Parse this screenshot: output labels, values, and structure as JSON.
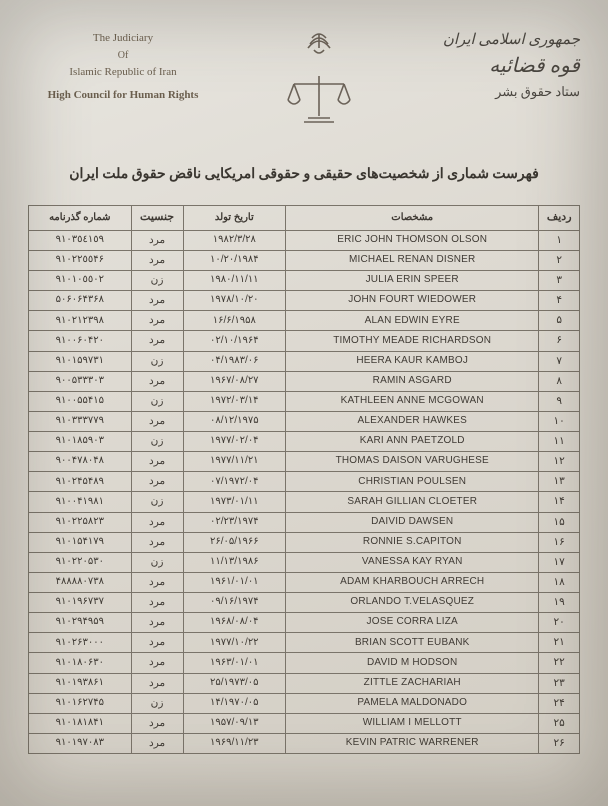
{
  "header": {
    "left": {
      "line1": "The Judiciary",
      "line2": "Of",
      "line3": "Islamic Republic of Iran",
      "line4": "High Council for Human Rights"
    },
    "right": {
      "line1": "جمهوری اسلامی ایران",
      "line2": "قوه قضائیه",
      "line3": "ستاد حقوق بشر"
    }
  },
  "title": "فهرست شماری از شخصیت‌های حقیقی و حقوقی امریکایی ناقض حقوق ملت ایران",
  "columns": {
    "row": "ردیف",
    "name": "مشخصات",
    "dob": "تاریخ تولد",
    "gender": "جنسیت",
    "passport": "شماره گذرنامه"
  },
  "gender_map": {
    "m": "مرد",
    "f": "زن"
  },
  "rows": [
    {
      "n": "١",
      "name": "ERIC JOHN THOMSON OLSON",
      "dob": "١٩٨٢/٣/٢٨",
      "g": "m",
      "pass": "٩١٠٣٥٤١٥٩"
    },
    {
      "n": "٢",
      "name": "MICHAEL RENAN DISNER",
      "dob": "١٩٨۴/١٠/٢٠",
      "g": "m",
      "pass": "٩١٠٢٢٥٥۴۶"
    },
    {
      "n": "٣",
      "name": "JULIA ERIN SPEER",
      "dob": "١٩٨٠/١١/١١",
      "g": "f",
      "pass": "٩١٠١٠٥٥٠٢"
    },
    {
      "n": "۴",
      "name": "JOHN FOURT WIEDOWER",
      "dob": "١٩٧٨/١٠/٢٠",
      "g": "m",
      "pass": "۵٠۶٠۶۴٣۶٨"
    },
    {
      "n": "۵",
      "name": "ALAN EDWIN EYRE",
      "dob": "١٩۵٨/۶/١۶",
      "g": "m",
      "pass": "٩١٠٢١٢٣٩٨"
    },
    {
      "n": "۶",
      "name": "TIMOTHY MEADE RICHARDSON",
      "dob": "١٩۶۴/٠٢/١٠",
      "g": "m",
      "pass": "٩١٠٠۶٠۴٢٠"
    },
    {
      "n": "٧",
      "name": "HEERA KAUR KAMBOJ",
      "dob": "١٩٨٣/٠۶/٠۴",
      "g": "f",
      "pass": "٩١٠١۵٩٧٣١"
    },
    {
      "n": "٨",
      "name": "RAMIN ASGARD",
      "dob": "١٩۶٧/٠٨/٢٧",
      "g": "m",
      "pass": "٩٠٠۵٣٣٣٠٣"
    },
    {
      "n": "٩",
      "name": "KATHLEEN ANNE MCGOWAN",
      "dob": "١٩٧٢/٠٣/١۴",
      "g": "f",
      "pass": "٩١٠٠۵۵۴١۵"
    },
    {
      "n": "١٠",
      "name": "ALEXANDER HAWKES",
      "dob": "١٩٧۵/٠٨/١٢",
      "g": "m",
      "pass": "٩١٠٣٣٣٧٧٩"
    },
    {
      "n": "١١",
      "name": "KARI ANN PAETZOLD",
      "dob": "١٩٧٧/٠٢/٠۴",
      "g": "f",
      "pass": "٩١٠١٨۵٩٠٣"
    },
    {
      "n": "١٢",
      "name": "THOMAS DAISON VARUGHESE",
      "dob": "١٩٧٧/١١/٢١",
      "g": "m",
      "pass": "٩٠٠۴٧٨٠۴٨"
    },
    {
      "n": "١٣",
      "name": "CHRISTIAN POULSEN",
      "dob": "١٩٧٢/٠۴/٠٧",
      "g": "m",
      "pass": "٩١٠٢۴۵۴٨٩"
    },
    {
      "n": "١۴",
      "name": "SARAH GILLIAN CLOETER",
      "dob": "١٩٧٣/٠١/١١",
      "g": "f",
      "pass": "٩١٠٠۴١٩٨١"
    },
    {
      "n": "١۵",
      "name": "DAIVID DAWSEN",
      "dob": "١٩٧۴/٠٢/٢٣",
      "g": "m",
      "pass": "٩١٠٢٢۵٨٢٣"
    },
    {
      "n": "١۶",
      "name": "RONNIE S.CAPITON",
      "dob": "١٩۶۶/٠۵/٢۶",
      "g": "m",
      "pass": "٩١٠١۵۴١٧٩"
    },
    {
      "n": "١٧",
      "name": "VANESSA KAY RYAN",
      "dob": "١٩٨۶/١١/١٣",
      "g": "f",
      "pass": "٩١٠٢٢٠۵٣٠"
    },
    {
      "n": "١٨",
      "name": "ADAM KHARBOUCH ARRECH",
      "dob": "١٩۶١/٠١/٠١",
      "g": "m",
      "pass": "۴٨٨٨٨٠٧٣٨"
    },
    {
      "n": "١٩",
      "name": "ORLANDO T.VELASQUEZ",
      "dob": "١٩٧۴/٠٩/١۶",
      "g": "m",
      "pass": "٩١٠١٩۶٧٣٧"
    },
    {
      "n": "٢٠",
      "name": "JOSE CORRA LIZA",
      "dob": "١٩۶٨/٠٨/٠۴",
      "g": "m",
      "pass": "٩١٠٢٩۴٩۵٩"
    },
    {
      "n": "٢١",
      "name": "BRIAN SCOTT EUBANK",
      "dob": "١٩٧٧/١٠/٢٢",
      "g": "m",
      "pass": "٩١٠٢۶٣٠٠٠"
    },
    {
      "n": "٢٢",
      "name": "DAVID M HODSON",
      "dob": "١٩۶٣/٠١/٠١",
      "g": "m",
      "pass": "٩١٠١٨٠۶٣٠"
    },
    {
      "n": "٢٣",
      "name": "ZITTLE ZACHARIAH",
      "dob": "١٩٧٣/٠۵/٢۵",
      "g": "m",
      "pass": "٩١٠١٩٣٨۶١"
    },
    {
      "n": "٢۴",
      "name": "PAMELA MALDONADO",
      "dob": "١٩٧٠/٠۵/١۴",
      "g": "f",
      "pass": "٩١٠١۶٢٧۴۵"
    },
    {
      "n": "٢۵",
      "name": "WILLIAM I MELLOTT",
      "dob": "١٩۵٧/٠٩/١٣",
      "g": "m",
      "pass": "٩١٠١٨١٨۴١"
    },
    {
      "n": "٢۶",
      "name": "KEVIN PATRIC WARRENER",
      "dob": "١٩۶٩/١١/٢٣",
      "g": "m",
      "pass": "٩١٠١٩٧٠٨٣"
    }
  ],
  "style": {
    "emblem_color": "#6b6258",
    "text_color": "#4a4640",
    "border_color": "#7a746a",
    "background_top": "#e8e6e0",
    "background_bottom": "#d2cdc3"
  }
}
